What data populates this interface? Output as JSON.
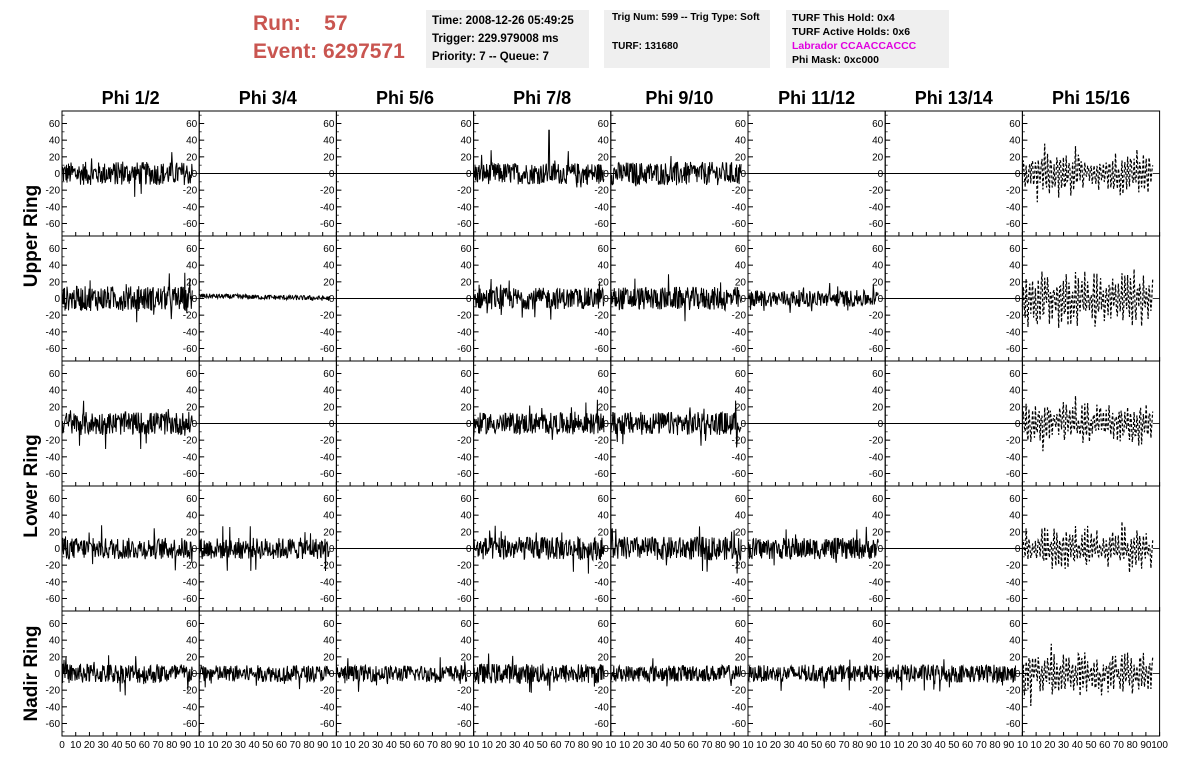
{
  "header": {
    "run_label": "Run:",
    "run_value": "57",
    "event_label": "Event:",
    "event_value": "6297571",
    "time_text": "Time: 2008-12-26 05:49:25",
    "trigger_text": "Trigger: 229.979008 ms",
    "priority_text": "Priority: 7 -- Queue: 7",
    "trig_text": "Trig Num: 599 -- Trig Type: Soft",
    "turf_text": "TURF: 131680",
    "turf_hold_text": "TURF This Hold: 0x4",
    "turf_active_text": "TURF Active Holds: 0x6",
    "labrador_text": "Labrador CCAACCACCC",
    "phi_mask_text": "Phi Mask: 0xc000",
    "colors": {
      "run": "#c95550",
      "labrador": "#e000e0",
      "info_bg": "#efefef"
    }
  },
  "chart_data": {
    "type": "line",
    "columns": [
      "Phi 1/2",
      "Phi 3/4",
      "Phi 5/6",
      "Phi 7/8",
      "Phi 9/10",
      "Phi 11/12",
      "Phi 13/14",
      "Phi 15/16"
    ],
    "rows": [
      "Upper Ring",
      "Upper Ring",
      "Lower Ring",
      "Lower Ring",
      "Nadir Ring"
    ],
    "row_group_labels": [
      {
        "label": "Upper Ring",
        "rows": [
          0,
          1
        ]
      },
      {
        "label": "Lower Ring",
        "rows": [
          2,
          3
        ]
      },
      {
        "label": "Nadir Ring",
        "rows": [
          4,
          4
        ]
      }
    ],
    "xlim": [
      0,
      100
    ],
    "ylim": [
      -75,
      75
    ],
    "x_ticks": [
      0,
      10,
      20,
      30,
      40,
      50,
      60,
      70,
      80,
      90,
      100
    ],
    "x_tick_labels_first": [
      "0",
      "10",
      "20",
      "30",
      "40",
      "50",
      "60",
      "70",
      "80",
      "90",
      "10"
    ],
    "x_tick_labels_mid": [
      "10",
      "20",
      "30",
      "40",
      "50",
      "60",
      "70",
      "80",
      "90",
      "10"
    ],
    "x_tick_labels_last": [
      "10",
      "20",
      "30",
      "40",
      "50",
      "60",
      "70",
      "80",
      "90",
      "100"
    ],
    "y_ticks": [
      -60,
      -40,
      -20,
      0,
      20,
      40,
      60
    ],
    "y_tick_labels": [
      "-60",
      "-40",
      "-20",
      "0",
      "20",
      "40",
      "60"
    ],
    "trace_range_x": [
      0,
      95
    ],
    "panels": [
      [
        {
          "style": "noise",
          "amp": 14
        },
        {
          "style": "flat"
        },
        {
          "style": "flat"
        },
        {
          "style": "noise",
          "amp": 13,
          "spike": [
            55,
            52
          ]
        },
        {
          "style": "noise",
          "amp": 14
        },
        {
          "style": "flat"
        },
        {
          "style": "flat"
        },
        {
          "style": "dashed",
          "amp": 22
        }
      ],
      [
        {
          "style": "noise",
          "amp": 15
        },
        {
          "style": "small",
          "amp": 3,
          "offset": 3
        },
        {
          "style": "flat"
        },
        {
          "style": "noise",
          "amp": 13
        },
        {
          "style": "noise",
          "amp": 14
        },
        {
          "style": "noise",
          "amp": 10
        },
        {
          "style": "flat"
        },
        {
          "style": "dashed",
          "amp": 30
        }
      ],
      [
        {
          "style": "noise",
          "amp": 14
        },
        {
          "style": "flat"
        },
        {
          "style": "flat"
        },
        {
          "style": "noise",
          "amp": 13
        },
        {
          "style": "noise",
          "amp": 14
        },
        {
          "style": "flat"
        },
        {
          "style": "flat"
        },
        {
          "style": "dashed",
          "amp": 22
        }
      ],
      [
        {
          "style": "noise",
          "amp": 13
        },
        {
          "style": "noise",
          "amp": 13
        },
        {
          "style": "flat"
        },
        {
          "style": "noise",
          "amp": 14
        },
        {
          "style": "noise",
          "amp": 14
        },
        {
          "style": "noise",
          "amp": 13
        },
        {
          "style": "flat"
        },
        {
          "style": "dashed",
          "amp": 22
        }
      ],
      [
        {
          "style": "noise",
          "amp": 12
        },
        {
          "style": "noise",
          "amp": 10
        },
        {
          "style": "noise",
          "amp": 10
        },
        {
          "style": "noise",
          "amp": 12
        },
        {
          "style": "noise",
          "amp": 10
        },
        {
          "style": "noise",
          "amp": 10
        },
        {
          "style": "noise",
          "amp": 11
        },
        {
          "style": "dashed",
          "amp": 22
        }
      ]
    ]
  }
}
